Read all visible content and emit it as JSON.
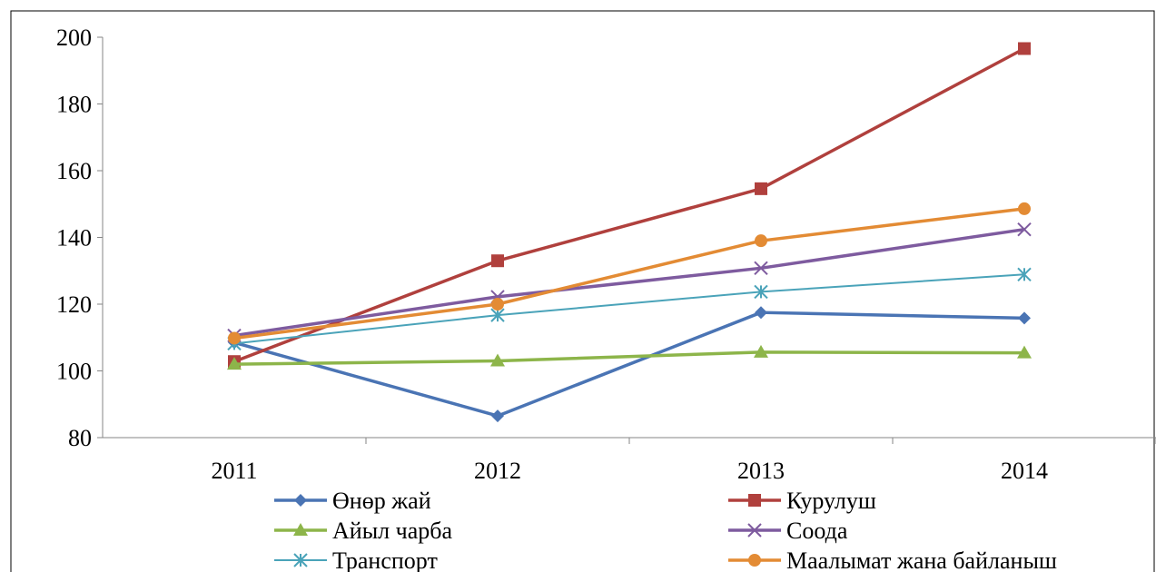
{
  "chart_data": {
    "type": "line",
    "title": "",
    "xlabel": "",
    "ylabel": "",
    "categories": [
      "2011",
      "2012",
      "2013",
      "2014"
    ],
    "ylim": [
      80,
      200
    ],
    "yticks": [
      80,
      100,
      120,
      140,
      160,
      180,
      200
    ],
    "grid": false,
    "legend_position": "bottom",
    "series": [
      {
        "name": "Өнөр жай",
        "values": [
          108.5,
          86.5,
          117.5,
          115.8
        ],
        "color": "#4a74b4",
        "marker": "diamond"
      },
      {
        "name": "Курулуш",
        "values": [
          102.8,
          133,
          154.6,
          196.6
        ],
        "color": "#b0403d",
        "marker": "square"
      },
      {
        "name": "Айыл чарба",
        "values": [
          102,
          103,
          105.6,
          105.4
        ],
        "color": "#8db54a",
        "marker": "triangle"
      },
      {
        "name": "Соода",
        "values": [
          110.6,
          122.2,
          130.8,
          142.4
        ],
        "color": "#7e5b9f",
        "marker": "x"
      },
      {
        "name": "Транспорт",
        "values": [
          108.2,
          116.7,
          123.7,
          128.9
        ],
        "color": "#4aa3b9",
        "marker": "asterisk"
      },
      {
        "name": "Маалымат жана байланыш",
        "values": [
          109.8,
          120,
          139,
          148.6
        ],
        "color": "#e38b34",
        "marker": "circle"
      }
    ]
  }
}
